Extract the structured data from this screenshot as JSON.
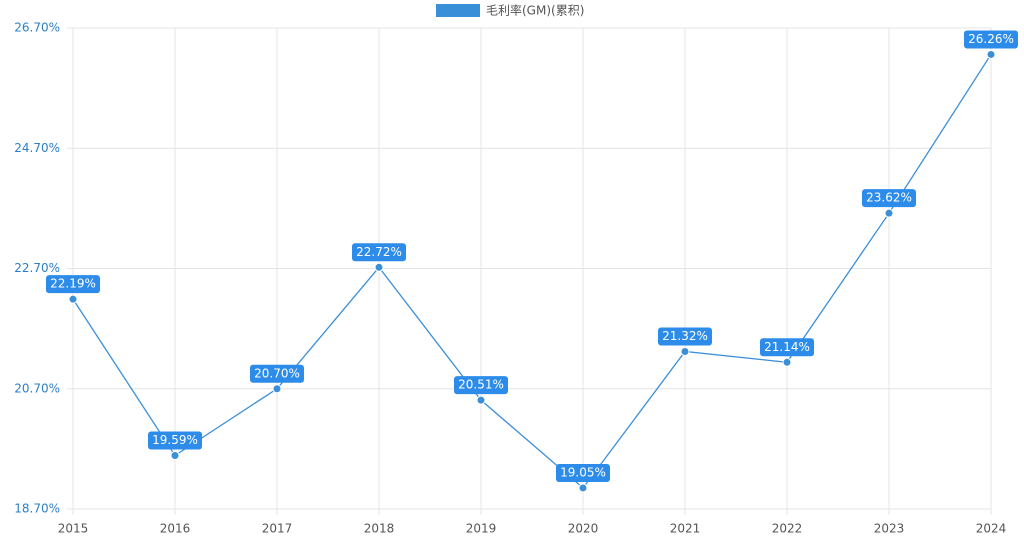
{
  "chart_data": {
    "type": "line",
    "categories": [
      "2015",
      "2016",
      "2017",
      "2018",
      "2019",
      "2020",
      "2021",
      "2022",
      "2023",
      "2024"
    ],
    "series": [
      {
        "name": "毛利率(GM)(累积)",
        "color": "#3a8fd9",
        "values": [
          22.19,
          19.59,
          20.7,
          22.72,
          20.51,
          19.05,
          21.32,
          21.14,
          23.62,
          26.26
        ],
        "value_labels": [
          "22.19%",
          "19.59%",
          "20.70%",
          "22.72%",
          "20.51%",
          "19.05%",
          "21.32%",
          "21.14%",
          "23.62%",
          "26.26%"
        ]
      }
    ],
    "ylim": [
      18.7,
      26.7
    ],
    "yticks": [
      {
        "value": 18.7,
        "label": "18.70%"
      },
      {
        "value": 20.7,
        "label": "20.70%"
      },
      {
        "value": 22.7,
        "label": "22.70%"
      },
      {
        "value": 24.7,
        "label": "24.70%"
      },
      {
        "value": 26.7,
        "label": "26.70%"
      }
    ],
    "grid": true,
    "legend": "top"
  }
}
